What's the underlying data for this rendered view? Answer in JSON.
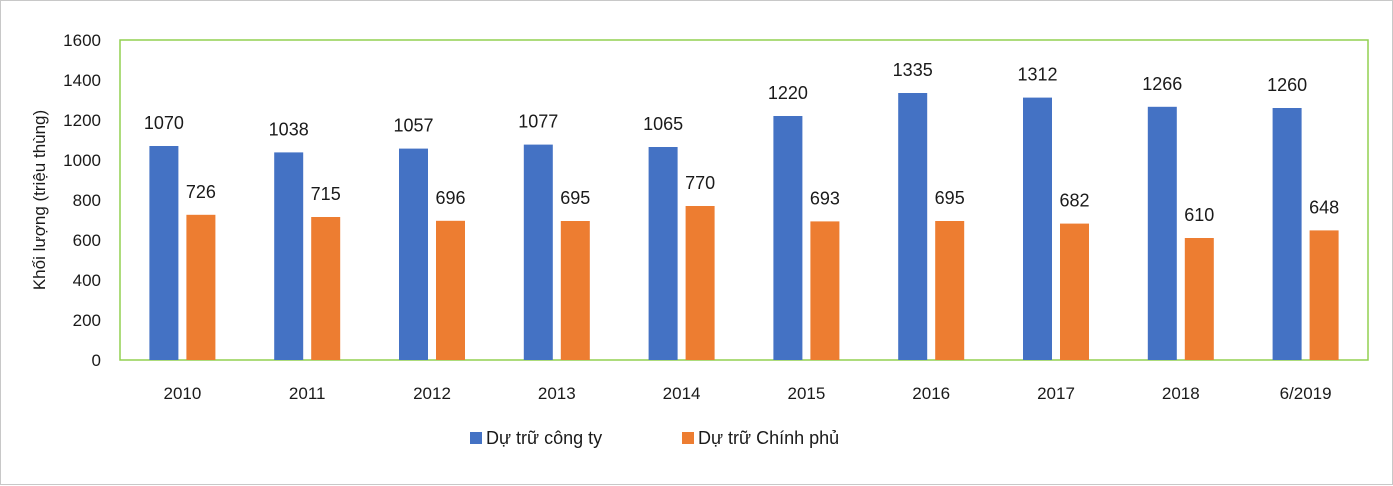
{
  "chart_data": {
    "type": "bar",
    "categories": [
      "2010",
      "2011",
      "2012",
      "2013",
      "2014",
      "2015",
      "2016",
      "2017",
      "2018",
      "6/2019"
    ],
    "series": [
      {
        "name": "Dự trữ công ty",
        "values": [
          1070,
          1038,
          1057,
          1077,
          1065,
          1220,
          1335,
          1312,
          1266,
          1260
        ],
        "color": "#4472c4"
      },
      {
        "name": "Dự trữ Chính phủ",
        "values": [
          726,
          715,
          696,
          695,
          770,
          693,
          695,
          682,
          610,
          648
        ],
        "color": "#ed7d31"
      }
    ],
    "title": "",
    "xlabel": "",
    "ylabel": "Khối lượng (triệu thùng)",
    "ylim": [
      0,
      1600
    ],
    "yticks": [
      0,
      200,
      400,
      600,
      800,
      1000,
      1200,
      1400,
      1600
    ],
    "grid": false,
    "legend_position": "bottom",
    "plot_border_color": "#92d050"
  }
}
